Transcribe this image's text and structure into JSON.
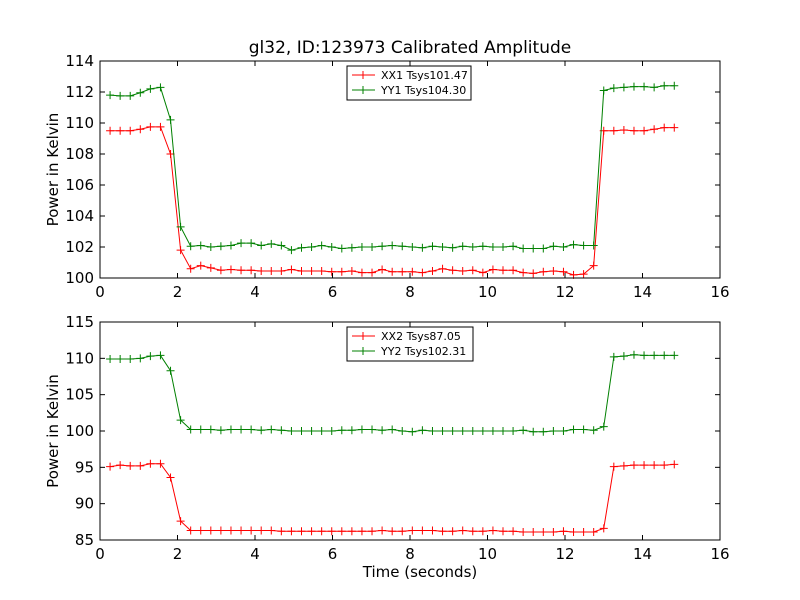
{
  "figure_title": "gl32, ID:123973 Calibrated Amplitude",
  "colors": {
    "red": "#ff0000",
    "green": "#008000",
    "axis": "#000000"
  },
  "chart_data": [
    {
      "type": "line",
      "title": "gl32, ID:123973 Calibrated Amplitude",
      "xlabel": "",
      "ylabel": "Power in Kelvin",
      "xlim": [
        0,
        16
      ],
      "ylim": [
        100,
        114
      ],
      "xticks": [
        "0",
        "2",
        "4",
        "6",
        "8",
        "10",
        "12",
        "14",
        "16"
      ],
      "yticks": [
        "100",
        "102",
        "104",
        "106",
        "108",
        "110",
        "112",
        "114"
      ],
      "grid": false,
      "legend_position": "upper center",
      "series": [
        {
          "name": "XX1 Tsys101.47",
          "color": "#ff0000",
          "x": [
            0.26,
            0.52,
            0.78,
            1.04,
            1.3,
            1.56,
            1.82,
            2.08,
            2.34,
            2.6,
            2.86,
            3.12,
            3.38,
            3.64,
            3.9,
            4.16,
            4.42,
            4.68,
            4.94,
            5.2,
            5.46,
            5.72,
            5.98,
            6.24,
            6.5,
            6.76,
            7.02,
            7.28,
            7.54,
            7.8,
            8.06,
            8.32,
            8.58,
            8.84,
            9.1,
            9.36,
            9.62,
            9.88,
            10.14,
            10.4,
            10.66,
            10.92,
            11.18,
            11.44,
            11.7,
            11.96,
            12.22,
            12.48,
            12.74,
            13.0,
            13.26,
            13.52,
            13.78,
            14.04,
            14.3,
            14.56,
            14.82
          ],
          "y": [
            109.5,
            109.5,
            109.5,
            109.6,
            109.75,
            109.75,
            108.0,
            101.8,
            100.6,
            100.8,
            100.65,
            100.5,
            100.55,
            100.5,
            100.5,
            100.45,
            100.45,
            100.45,
            100.55,
            100.45,
            100.45,
            100.45,
            100.4,
            100.4,
            100.45,
            100.35,
            100.35,
            100.55,
            100.4,
            100.4,
            100.4,
            100.35,
            100.45,
            100.6,
            100.5,
            100.45,
            100.5,
            100.35,
            100.55,
            100.5,
            100.5,
            100.35,
            100.3,
            100.4,
            100.45,
            100.4,
            100.2,
            100.25,
            100.8,
            109.5,
            109.5,
            109.55,
            109.5,
            109.5,
            109.6,
            109.7,
            109.7
          ]
        },
        {
          "name": "YY1 Tsys104.30",
          "color": "#008000",
          "x": [
            0.26,
            0.52,
            0.78,
            1.04,
            1.3,
            1.56,
            1.82,
            2.08,
            2.34,
            2.6,
            2.86,
            3.12,
            3.38,
            3.64,
            3.9,
            4.16,
            4.42,
            4.68,
            4.94,
            5.2,
            5.46,
            5.72,
            5.98,
            6.24,
            6.5,
            6.76,
            7.02,
            7.28,
            7.54,
            7.8,
            8.06,
            8.32,
            8.58,
            8.84,
            9.1,
            9.36,
            9.62,
            9.88,
            10.14,
            10.4,
            10.66,
            10.92,
            11.18,
            11.44,
            11.7,
            11.96,
            12.22,
            12.48,
            12.74,
            13.0,
            13.26,
            13.52,
            13.78,
            14.04,
            14.3,
            14.56,
            14.82
          ],
          "y": [
            111.8,
            111.75,
            111.75,
            111.95,
            112.2,
            112.3,
            110.2,
            103.3,
            102.05,
            102.1,
            102.0,
            102.05,
            102.1,
            102.25,
            102.25,
            102.1,
            102.2,
            102.1,
            101.8,
            101.95,
            102.0,
            102.1,
            102.0,
            101.9,
            101.95,
            102.0,
            102.0,
            102.05,
            102.1,
            102.05,
            102.0,
            101.95,
            102.05,
            102.0,
            101.95,
            102.05,
            102.0,
            102.05,
            102.0,
            102.0,
            102.05,
            101.9,
            101.9,
            101.9,
            102.05,
            102.0,
            102.15,
            102.1,
            102.1,
            112.1,
            112.25,
            112.3,
            112.35,
            112.35,
            112.3,
            112.4,
            112.4
          ]
        }
      ]
    },
    {
      "type": "line",
      "title": "",
      "xlabel": "Time (seconds)",
      "ylabel": "Power in Kelvin",
      "xlim": [
        0,
        16
      ],
      "ylim": [
        85,
        115
      ],
      "xticks": [
        "0",
        "2",
        "4",
        "6",
        "8",
        "10",
        "12",
        "14",
        "16"
      ],
      "yticks": [
        "85",
        "90",
        "95",
        "100",
        "105",
        "110",
        "115"
      ],
      "grid": false,
      "legend_position": "upper center",
      "series": [
        {
          "name": "XX2 Tsys87.05",
          "color": "#ff0000",
          "x": [
            0.26,
            0.52,
            0.78,
            1.04,
            1.3,
            1.56,
            1.82,
            2.08,
            2.34,
            2.6,
            2.86,
            3.12,
            3.38,
            3.64,
            3.9,
            4.16,
            4.42,
            4.68,
            4.94,
            5.2,
            5.46,
            5.72,
            5.98,
            6.24,
            6.5,
            6.76,
            7.02,
            7.28,
            7.54,
            7.8,
            8.06,
            8.32,
            8.58,
            8.84,
            9.1,
            9.36,
            9.62,
            9.88,
            10.14,
            10.4,
            10.66,
            10.92,
            11.18,
            11.44,
            11.7,
            11.96,
            12.22,
            12.48,
            12.74,
            13.0,
            13.26,
            13.52,
            13.78,
            14.04,
            14.3,
            14.56,
            14.82
          ],
          "y": [
            95.1,
            95.3,
            95.2,
            95.2,
            95.5,
            95.5,
            93.6,
            87.6,
            86.3,
            86.3,
            86.3,
            86.3,
            86.3,
            86.3,
            86.3,
            86.3,
            86.3,
            86.2,
            86.2,
            86.2,
            86.2,
            86.2,
            86.2,
            86.2,
            86.2,
            86.2,
            86.2,
            86.3,
            86.2,
            86.2,
            86.3,
            86.3,
            86.3,
            86.2,
            86.2,
            86.3,
            86.2,
            86.2,
            86.3,
            86.2,
            86.2,
            86.1,
            86.1,
            86.1,
            86.1,
            86.2,
            86.1,
            86.1,
            86.1,
            86.6,
            95.1,
            95.2,
            95.3,
            95.3,
            95.3,
            95.3,
            95.4
          ]
        },
        {
          "name": "YY2 Tsys102.31",
          "color": "#008000",
          "x": [
            0.26,
            0.52,
            0.78,
            1.04,
            1.3,
            1.56,
            1.82,
            2.08,
            2.34,
            2.6,
            2.86,
            3.12,
            3.38,
            3.64,
            3.9,
            4.16,
            4.42,
            4.68,
            4.94,
            5.2,
            5.46,
            5.72,
            5.98,
            6.24,
            6.5,
            6.76,
            7.02,
            7.28,
            7.54,
            7.8,
            8.06,
            8.32,
            8.58,
            8.84,
            9.1,
            9.36,
            9.62,
            9.88,
            10.14,
            10.4,
            10.66,
            10.92,
            11.18,
            11.44,
            11.7,
            11.96,
            12.22,
            12.48,
            12.74,
            13.0,
            13.26,
            13.52,
            13.78,
            14.04,
            14.3,
            14.56,
            14.82
          ],
          "y": [
            109.9,
            109.9,
            109.9,
            110.0,
            110.3,
            110.4,
            108.3,
            101.5,
            100.2,
            100.2,
            100.2,
            100.1,
            100.2,
            100.2,
            100.2,
            100.1,
            100.2,
            100.1,
            100.0,
            100.0,
            100.0,
            100.0,
            100.0,
            100.1,
            100.1,
            100.2,
            100.2,
            100.1,
            100.2,
            100.0,
            99.9,
            100.1,
            100.0,
            100.0,
            100.0,
            100.0,
            100.0,
            100.0,
            100.0,
            100.0,
            100.0,
            100.1,
            99.9,
            99.9,
            100.0,
            100.0,
            100.2,
            100.2,
            100.1,
            100.6,
            110.2,
            110.3,
            110.5,
            110.4,
            110.4,
            110.4,
            110.4
          ]
        }
      ]
    }
  ]
}
